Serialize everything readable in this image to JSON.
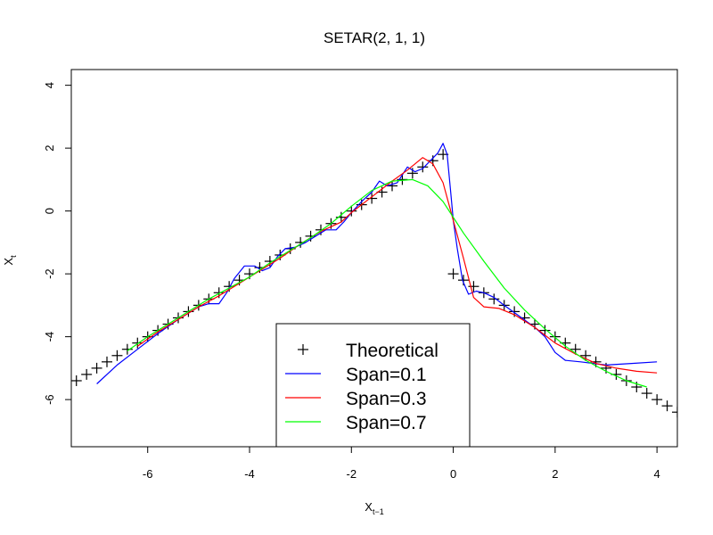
{
  "chart_data": {
    "type": "line",
    "title": "SETAR(2, 1, 1)",
    "xlabel": {
      "base": "X",
      "sub": "t−1"
    },
    "ylabel": {
      "base": "X",
      "sub": "t"
    },
    "xlim": [
      -7.5,
      4.4
    ],
    "ylim": [
      -7.5,
      4.5
    ],
    "xticks": [
      -6,
      -4,
      -2,
      0,
      2,
      4
    ],
    "yticks": [
      -6,
      -4,
      -2,
      0,
      2,
      4
    ],
    "legend_position": "bottom-center",
    "series": [
      {
        "name": "Theoretical",
        "kind": "points",
        "marker": "+",
        "color": "#000000",
        "points": [
          [
            -7.4,
            -5.4
          ],
          [
            -7.2,
            -5.2
          ],
          [
            -7.0,
            -5.0
          ],
          [
            -6.8,
            -4.8
          ],
          [
            -6.6,
            -4.6
          ],
          [
            -6.4,
            -4.4
          ],
          [
            -6.2,
            -4.2
          ],
          [
            -6.0,
            -4.0
          ],
          [
            -5.8,
            -3.8
          ],
          [
            -5.6,
            -3.6
          ],
          [
            -5.4,
            -3.4
          ],
          [
            -5.2,
            -3.2
          ],
          [
            -5.0,
            -3.0
          ],
          [
            -4.8,
            -2.8
          ],
          [
            -4.6,
            -2.6
          ],
          [
            -4.4,
            -2.4
          ],
          [
            -4.2,
            -2.2
          ],
          [
            -4.0,
            -2.0
          ],
          [
            -3.8,
            -1.8
          ],
          [
            -3.6,
            -1.6
          ],
          [
            -3.4,
            -1.4
          ],
          [
            -3.2,
            -1.2
          ],
          [
            -3.0,
            -1.0
          ],
          [
            -2.8,
            -0.8
          ],
          [
            -2.6,
            -0.6
          ],
          [
            -2.4,
            -0.4
          ],
          [
            -2.2,
            -0.2
          ],
          [
            -2.0,
            0.0
          ],
          [
            -1.8,
            0.2
          ],
          [
            -1.6,
            0.4
          ],
          [
            -1.4,
            0.6
          ],
          [
            -1.2,
            0.8
          ],
          [
            -1.0,
            1.0
          ],
          [
            -0.8,
            1.2
          ],
          [
            -0.6,
            1.4
          ],
          [
            -0.4,
            1.6
          ],
          [
            -0.2,
            1.8
          ],
          [
            0.0,
            -2.0
          ],
          [
            0.2,
            -2.2
          ],
          [
            0.4,
            -2.4
          ],
          [
            0.6,
            -2.6
          ],
          [
            0.8,
            -2.8
          ],
          [
            1.0,
            -3.0
          ],
          [
            1.2,
            -3.2
          ],
          [
            1.4,
            -3.4
          ],
          [
            1.6,
            -3.6
          ],
          [
            1.8,
            -3.8
          ],
          [
            2.0,
            -4.0
          ],
          [
            2.2,
            -4.2
          ],
          [
            2.4,
            -4.4
          ],
          [
            2.6,
            -4.6
          ],
          [
            2.8,
            -4.8
          ],
          [
            3.0,
            -5.0
          ],
          [
            3.2,
            -5.2
          ],
          [
            3.4,
            -5.4
          ],
          [
            3.6,
            -5.6
          ],
          [
            3.8,
            -5.8
          ],
          [
            4.0,
            -6.0
          ],
          [
            4.2,
            -6.2
          ],
          [
            4.4,
            -6.4
          ]
        ]
      },
      {
        "name": "Span=0.1",
        "kind": "line",
        "color": "#0000ff",
        "points": [
          [
            -7.0,
            -5.5
          ],
          [
            -6.6,
            -4.9
          ],
          [
            -6.2,
            -4.4
          ],
          [
            -5.8,
            -3.9
          ],
          [
            -5.4,
            -3.45
          ],
          [
            -5.0,
            -3.05
          ],
          [
            -4.8,
            -2.95
          ],
          [
            -4.6,
            -2.95
          ],
          [
            -4.45,
            -2.6
          ],
          [
            -4.3,
            -2.15
          ],
          [
            -4.1,
            -1.75
          ],
          [
            -3.9,
            -1.75
          ],
          [
            -3.75,
            -1.9
          ],
          [
            -3.6,
            -1.8
          ],
          [
            -3.45,
            -1.45
          ],
          [
            -3.3,
            -1.2
          ],
          [
            -3.1,
            -1.15
          ],
          [
            -2.9,
            -1.0
          ],
          [
            -2.7,
            -0.8
          ],
          [
            -2.5,
            -0.6
          ],
          [
            -2.3,
            -0.6
          ],
          [
            -2.15,
            -0.35
          ],
          [
            -2.0,
            -0.05
          ],
          [
            -1.8,
            0.3
          ],
          [
            -1.6,
            0.6
          ],
          [
            -1.45,
            0.95
          ],
          [
            -1.3,
            0.8
          ],
          [
            -1.1,
            0.9
          ],
          [
            -0.9,
            1.4
          ],
          [
            -0.75,
            1.25
          ],
          [
            -0.6,
            1.35
          ],
          [
            -0.45,
            1.6
          ],
          [
            -0.3,
            1.85
          ],
          [
            -0.2,
            2.15
          ],
          [
            -0.12,
            1.8
          ],
          [
            -0.05,
            0.6
          ],
          [
            0.0,
            -0.3
          ],
          [
            0.08,
            -1.2
          ],
          [
            0.18,
            -2.2
          ],
          [
            0.3,
            -2.65
          ],
          [
            0.45,
            -2.55
          ],
          [
            0.6,
            -2.6
          ],
          [
            0.8,
            -2.75
          ],
          [
            1.0,
            -3.0
          ],
          [
            1.3,
            -3.35
          ],
          [
            1.6,
            -3.7
          ],
          [
            1.8,
            -4.0
          ],
          [
            2.0,
            -4.5
          ],
          [
            2.2,
            -4.75
          ],
          [
            2.5,
            -4.8
          ],
          [
            3.0,
            -4.9
          ],
          [
            3.5,
            -4.85
          ],
          [
            4.0,
            -4.8
          ]
        ]
      },
      {
        "name": "Span=0.3",
        "kind": "line",
        "color": "#ff0000",
        "points": [
          [
            -6.2,
            -4.3
          ],
          [
            -5.8,
            -3.85
          ],
          [
            -5.4,
            -3.45
          ],
          [
            -5.0,
            -3.05
          ],
          [
            -4.6,
            -2.7
          ],
          [
            -4.2,
            -2.3
          ],
          [
            -3.8,
            -1.9
          ],
          [
            -3.4,
            -1.5
          ],
          [
            -3.0,
            -1.05
          ],
          [
            -2.6,
            -0.65
          ],
          [
            -2.2,
            -0.35
          ],
          [
            -2.0,
            -0.05
          ],
          [
            -1.6,
            0.45
          ],
          [
            -1.2,
            0.95
          ],
          [
            -0.9,
            1.3
          ],
          [
            -0.6,
            1.7
          ],
          [
            -0.4,
            1.5
          ],
          [
            -0.2,
            0.9
          ],
          [
            0.0,
            -0.3
          ],
          [
            0.2,
            -1.5
          ],
          [
            0.4,
            -2.75
          ],
          [
            0.6,
            -3.05
          ],
          [
            0.9,
            -3.1
          ],
          [
            1.2,
            -3.3
          ],
          [
            1.6,
            -3.7
          ],
          [
            2.0,
            -4.2
          ],
          [
            2.4,
            -4.55
          ],
          [
            2.8,
            -4.85
          ],
          [
            3.2,
            -5.0
          ],
          [
            3.6,
            -5.1
          ],
          [
            4.0,
            -5.15
          ]
        ]
      },
      {
        "name": "Span=0.7",
        "kind": "line",
        "color": "#00ff00",
        "points": [
          [
            -6.4,
            -4.45
          ],
          [
            -6.0,
            -4.0
          ],
          [
            -5.6,
            -3.6
          ],
          [
            -5.2,
            -3.2
          ],
          [
            -4.8,
            -2.8
          ],
          [
            -4.4,
            -2.45
          ],
          [
            -4.0,
            -2.1
          ],
          [
            -3.6,
            -1.65
          ],
          [
            -3.2,
            -1.25
          ],
          [
            -2.8,
            -0.85
          ],
          [
            -2.4,
            -0.4
          ],
          [
            -2.0,
            0.15
          ],
          [
            -1.6,
            0.65
          ],
          [
            -1.2,
            0.95
          ],
          [
            -0.8,
            1.0
          ],
          [
            -0.5,
            0.8
          ],
          [
            -0.2,
            0.3
          ],
          [
            0.2,
            -0.7
          ],
          [
            0.6,
            -1.6
          ],
          [
            1.0,
            -2.45
          ],
          [
            1.4,
            -3.15
          ],
          [
            1.8,
            -3.75
          ],
          [
            2.2,
            -4.3
          ],
          [
            2.6,
            -4.75
          ],
          [
            3.0,
            -5.1
          ],
          [
            3.4,
            -5.4
          ],
          [
            3.8,
            -5.6
          ]
        ]
      }
    ]
  }
}
